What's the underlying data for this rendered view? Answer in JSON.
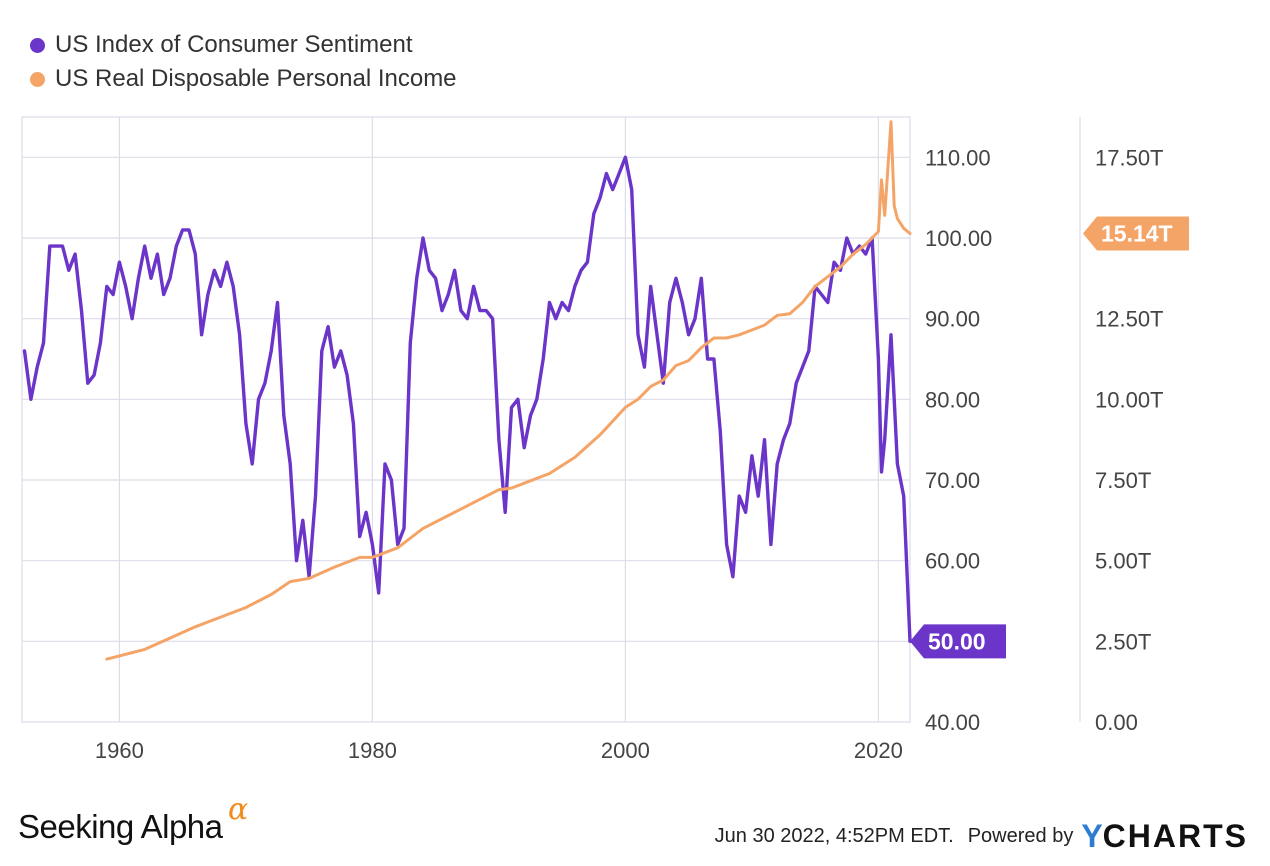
{
  "colors": {
    "sentiment": "#6a35c8",
    "income": "#f5a468",
    "grid": "#dcdde8",
    "axis_text": "#444444"
  },
  "legend": {
    "series1": "US Index of Consumer Sentiment",
    "series2": "US Real Disposable Personal Income"
  },
  "footer": {
    "brand": "Seeking Alpha",
    "brand_symbol": "α",
    "timestamp": "Jun 30 2022, 4:52PM EDT.",
    "powered_by": "Powered by",
    "ycharts_y": "Y",
    "ycharts_rest": "CHARTS"
  },
  "chart_data": {
    "type": "line",
    "x_range": [
      1952.3,
      2022.5
    ],
    "x_ticks": [
      {
        "value": 1960,
        "label": "1960"
      },
      {
        "value": 1980,
        "label": "1980"
      },
      {
        "value": 2000,
        "label": "2000"
      },
      {
        "value": 2020,
        "label": "2020"
      }
    ],
    "y_left": {
      "range": [
        40,
        115
      ],
      "ticks": [
        {
          "value": 40,
          "label": "40.00"
        },
        {
          "value": 50,
          "label": "50.00"
        },
        {
          "value": 60,
          "label": "60.00"
        },
        {
          "value": 70,
          "label": "70.00"
        },
        {
          "value": 80,
          "label": "80.00"
        },
        {
          "value": 90,
          "label": "90.00"
        },
        {
          "value": 100,
          "label": "100.00"
        },
        {
          "value": 110,
          "label": "110.00"
        }
      ]
    },
    "y_right": {
      "range": [
        0,
        18.75
      ],
      "ticks": [
        {
          "value": 0,
          "label": "0.00"
        },
        {
          "value": 2.5,
          "label": "2.50T"
        },
        {
          "value": 5,
          "label": "5.00T"
        },
        {
          "value": 7.5,
          "label": "7.50T"
        },
        {
          "value": 10,
          "label": "10.00T"
        },
        {
          "value": 12.5,
          "label": "12.50T"
        },
        {
          "value": 15,
          "label": "15.00T"
        },
        {
          "value": 17.5,
          "label": "17.50T"
        }
      ]
    },
    "series": [
      {
        "name": "US Index of Consumer Sentiment",
        "axis": "left",
        "end_label": "50.00",
        "x": [
          1952.5,
          1953,
          1953.5,
          1954,
          1954.5,
          1955,
          1955.5,
          1956,
          1956.5,
          1957,
          1957.5,
          1958,
          1958.5,
          1959,
          1959.5,
          1960,
          1960.5,
          1961,
          1961.5,
          1962,
          1962.5,
          1963,
          1963.5,
          1964,
          1964.5,
          1965,
          1965.5,
          1966,
          1966.5,
          1967,
          1967.5,
          1968,
          1968.5,
          1969,
          1969.5,
          1970,
          1970.5,
          1971,
          1971.5,
          1972,
          1972.5,
          1973,
          1973.5,
          1974,
          1974.5,
          1975,
          1975.5,
          1976,
          1976.5,
          1977,
          1977.5,
          1978,
          1978.5,
          1979,
          1979.5,
          1980,
          1980.5,
          1981,
          1981.5,
          1982,
          1982.5,
          1983,
          1983.5,
          1984,
          1984.5,
          1985,
          1985.5,
          1986,
          1986.5,
          1987,
          1987.5,
          1988,
          1988.5,
          1989,
          1989.5,
          1990,
          1990.5,
          1991,
          1991.5,
          1992,
          1992.5,
          1993,
          1993.5,
          1994,
          1994.5,
          1995,
          1995.5,
          1996,
          1996.5,
          1997,
          1997.5,
          1998,
          1998.5,
          1999,
          1999.5,
          2000,
          2000.5,
          2001,
          2001.5,
          2002,
          2002.5,
          2003,
          2003.5,
          2004,
          2004.5,
          2005,
          2005.5,
          2006,
          2006.5,
          2007,
          2007.5,
          2008,
          2008.5,
          2009,
          2009.5,
          2010,
          2010.5,
          2011,
          2011.5,
          2012,
          2012.5,
          2013,
          2013.5,
          2014,
          2014.5,
          2015,
          2015.5,
          2016,
          2016.5,
          2017,
          2017.5,
          2018,
          2018.5,
          2019,
          2019.5,
          2020,
          2020.25,
          2020.5,
          2021,
          2021.5,
          2022,
          2022.5
        ],
        "y": [
          86,
          80,
          84,
          87,
          99,
          99,
          99,
          96,
          98,
          91,
          82,
          83,
          87,
          94,
          93,
          97,
          94,
          90,
          95,
          99,
          95,
          98,
          93,
          95,
          99,
          101,
          101,
          98,
          88,
          93,
          96,
          94,
          97,
          94,
          88,
          77,
          72,
          80,
          82,
          86,
          92,
          78,
          72,
          60,
          65,
          58,
          68,
          86,
          89,
          84,
          86,
          83,
          77,
          63,
          66,
          62,
          56,
          72,
          70,
          62,
          64,
          87,
          95,
          100,
          96,
          95,
          91,
          93,
          96,
          91,
          90,
          94,
          91,
          91,
          90,
          75,
          66,
          79,
          80,
          74,
          78,
          80,
          85,
          92,
          90,
          92,
          91,
          94,
          96,
          97,
          103,
          105,
          108,
          106,
          108,
          110,
          106,
          88,
          84,
          94,
          88,
          82,
          92,
          95,
          92,
          88,
          90,
          95,
          85,
          85,
          76,
          62,
          58,
          68,
          66,
          73,
          68,
          75,
          62,
          72,
          75,
          77,
          82,
          84,
          86,
          94,
          93,
          92,
          97,
          96,
          100,
          98,
          99,
          98,
          100,
          85,
          71,
          75,
          88,
          72,
          68,
          50
        ]
      },
      {
        "name": "US Real Disposable Personal Income",
        "axis": "right",
        "end_label": "15.14T",
        "x": [
          1959,
          1960,
          1962,
          1964,
          1966,
          1968,
          1970,
          1972,
          1973.5,
          1975,
          1977,
          1979,
          1980,
          1982,
          1984,
          1986,
          1988,
          1990,
          1991,
          1992,
          1994,
          1996,
          1998,
          2000,
          2001,
          2002,
          2003,
          2004,
          2005,
          2006,
          2007,
          2008,
          2009,
          2010,
          2011,
          2012,
          2013,
          2014,
          2015,
          2016,
          2017,
          2018,
          2019,
          2020,
          2020.25,
          2020.5,
          2021,
          2021.25,
          2021.5,
          2022,
          2022.5
        ],
        "y": [
          1.95,
          2.05,
          2.25,
          2.6,
          2.95,
          3.25,
          3.55,
          3.95,
          4.35,
          4.45,
          4.8,
          5.1,
          5.1,
          5.4,
          6.0,
          6.4,
          6.8,
          7.2,
          7.25,
          7.4,
          7.7,
          8.2,
          8.9,
          9.75,
          10.0,
          10.4,
          10.6,
          11.05,
          11.2,
          11.6,
          11.9,
          11.9,
          12.0,
          12.15,
          12.3,
          12.6,
          12.65,
          13.0,
          13.5,
          13.8,
          14.1,
          14.5,
          14.8,
          15.2,
          16.8,
          15.7,
          18.6,
          16.0,
          15.6,
          15.3,
          15.14
        ]
      }
    ]
  }
}
